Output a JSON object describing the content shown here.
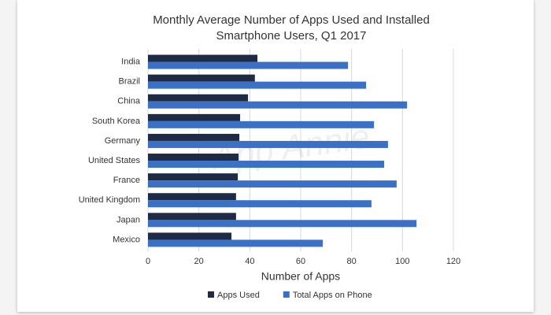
{
  "chart_data": {
    "type": "bar",
    "orientation": "horizontal",
    "title": "Monthly Average Number of Apps Used and Installed Smartphone Users, Q1 2017",
    "watermark": "App Annie",
    "x_label": "Number of Apps",
    "categories": [
      "India",
      "Brazil",
      "China",
      "South Korea",
      "Germany",
      "United States",
      "France",
      "United Kingdom",
      "Japan",
      "Mexico"
    ],
    "series": [
      {
        "name": "Apps Used",
        "color": "#1f2a44",
        "values": [
          43,
          42,
          39.3,
          36.2,
          35.9,
          35.6,
          35.3,
          34.6,
          34.6,
          32.8
        ]
      },
      {
        "name": "Total Apps on Phone",
        "color": "#3a70c6",
        "values": [
          78.6,
          85.7,
          101.8,
          88.8,
          94.3,
          92.8,
          97.7,
          87.8,
          105.5,
          68.7
        ]
      }
    ],
    "xlim": [
      0,
      120
    ],
    "xticks": [
      0,
      20,
      40,
      60,
      80,
      100,
      120
    ],
    "grid": true
  }
}
